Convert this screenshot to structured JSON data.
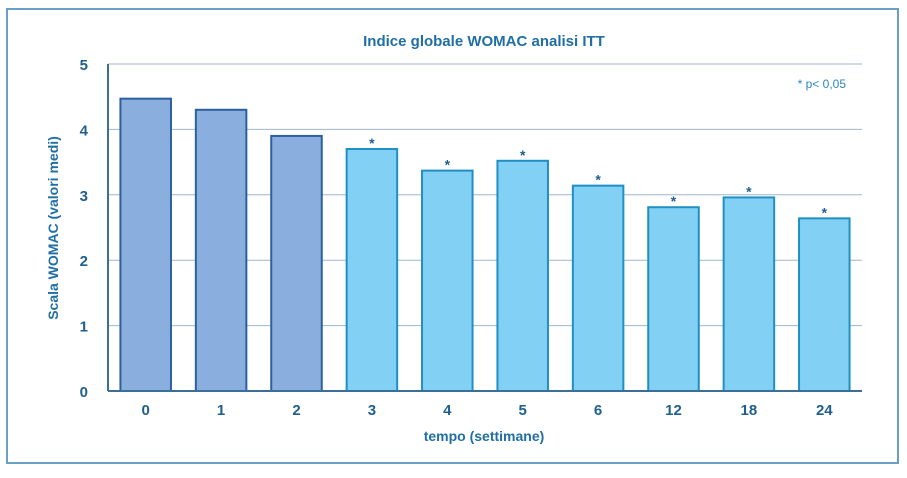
{
  "chart_data": {
    "type": "bar",
    "title": "Indice globale WOMAC analisi ITT",
    "xlabel": "tempo (settimane)",
    "ylabel": "Scala WOMAC (valori medi)",
    "note": "* p< 0,05",
    "categories": [
      "0",
      "1",
      "2",
      "3",
      "4",
      "5",
      "6",
      "12",
      "18",
      "24"
    ],
    "values": [
      4.47,
      4.3,
      3.9,
      3.7,
      3.37,
      3.52,
      3.14,
      2.81,
      2.96,
      2.64
    ],
    "significant": [
      false,
      false,
      false,
      true,
      true,
      true,
      true,
      true,
      true,
      true
    ],
    "significance_marker": "*",
    "ylim": [
      0,
      5
    ],
    "yticks": [
      "0",
      "1",
      "2",
      "3",
      "4",
      "5"
    ],
    "grid": true,
    "colors": {
      "baseline_fill": "#8aafde",
      "baseline_stroke": "#2b5f9e",
      "treatment_fill": "#82d0f3",
      "treatment_stroke": "#1f8fc4",
      "grid": "#9fb6cc",
      "axis": "#3a6f9a",
      "text": "#1f6fa5"
    }
  }
}
